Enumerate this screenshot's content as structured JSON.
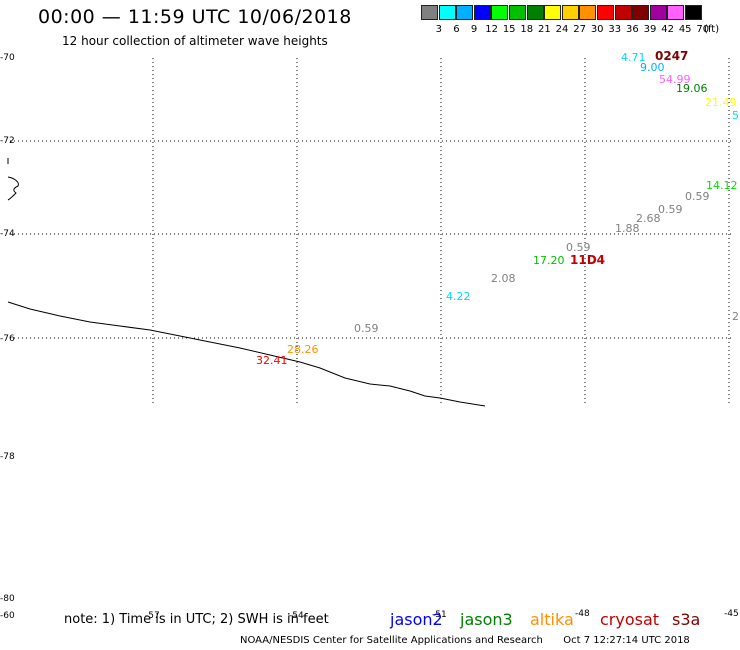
{
  "header": {
    "title": "00:00 — 11:59 UTC 10/06/2018",
    "subtitle": "12 hour collection of altimeter wave heights"
  },
  "legend": {
    "unit": "(ft)",
    "entries": [
      {
        "label": "3",
        "color": "#808080"
      },
      {
        "label": "6",
        "color": "#00ffff"
      },
      {
        "label": "9",
        "color": "#00b0ff"
      },
      {
        "label": "12",
        "color": "#0000ff"
      },
      {
        "label": "15",
        "color": "#00ff00"
      },
      {
        "label": "18",
        "color": "#00c000"
      },
      {
        "label": "21",
        "color": "#008000"
      },
      {
        "label": "24",
        "color": "#ffff00"
      },
      {
        "label": "27",
        "color": "#ffd000"
      },
      {
        "label": "30",
        "color": "#ff9000"
      },
      {
        "label": "33",
        "color": "#ff0000"
      },
      {
        "label": "36",
        "color": "#c00000"
      },
      {
        "label": "39",
        "color": "#800000"
      },
      {
        "label": "42",
        "color": "#a000a0"
      },
      {
        "label": "45",
        "color": "#ff60ff"
      },
      {
        "label": "70",
        "color": "#000000"
      }
    ]
  },
  "map": {
    "lat_labels": [
      "-70",
      "-72",
      "-74",
      "-76",
      "-78",
      "-80"
    ],
    "lon_labels": [
      "-60",
      "-57",
      "-54",
      "-51",
      "-48",
      "-45"
    ],
    "wave_labels": [
      {
        "text": "4.71",
        "color": "#00d8ff"
      },
      {
        "text": "0247",
        "color": "#800000",
        "bold": true
      },
      {
        "text": "9.00",
        "color": "#00b0ff"
      },
      {
        "text": "54.99",
        "color": "#ff60ff"
      },
      {
        "text": "19.06",
        "color": "#008000"
      },
      {
        "text": "21.49",
        "color": "#ffff00"
      },
      {
        "text": "5",
        "color": "#00d8ff"
      },
      {
        "text": "14.12",
        "color": "#00e000"
      },
      {
        "text": "0.59",
        "color": "#808080"
      },
      {
        "text": "0.59",
        "color": "#808080"
      },
      {
        "text": "2.68",
        "color": "#808080"
      },
      {
        "text": "1.88",
        "color": "#808080"
      },
      {
        "text": "0.59",
        "color": "#808080"
      },
      {
        "text": "17.20",
        "color": "#00c000"
      },
      {
        "text": "11D4",
        "color": "#c00000",
        "bold": true
      },
      {
        "text": "2.08",
        "color": "#808080"
      },
      {
        "text": "4.22",
        "color": "#00d8ff"
      },
      {
        "text": "2",
        "color": "#808080"
      },
      {
        "text": "0.59",
        "color": "#808080"
      },
      {
        "text": "28.26",
        "color": "#ff9000"
      },
      {
        "text": "32.41",
        "color": "#ff0000"
      }
    ]
  },
  "footer": {
    "note": "note: 1) Time is in UTC; 2) SWH is in feet",
    "missions": [
      {
        "name": "jason2",
        "color": "#0000ff"
      },
      {
        "name": "jason3",
        "color": "#008000"
      },
      {
        "name": "altika",
        "color": "#ff9000"
      },
      {
        "name": "cryosat",
        "color": "#c00000"
      },
      {
        "name": "s3a",
        "color": "#800000"
      }
    ],
    "credit": "NOAA/NESDIS Center for Satellite Applications and Research",
    "timestamp": "Oct  7 12:27:14 UTC 2018"
  }
}
